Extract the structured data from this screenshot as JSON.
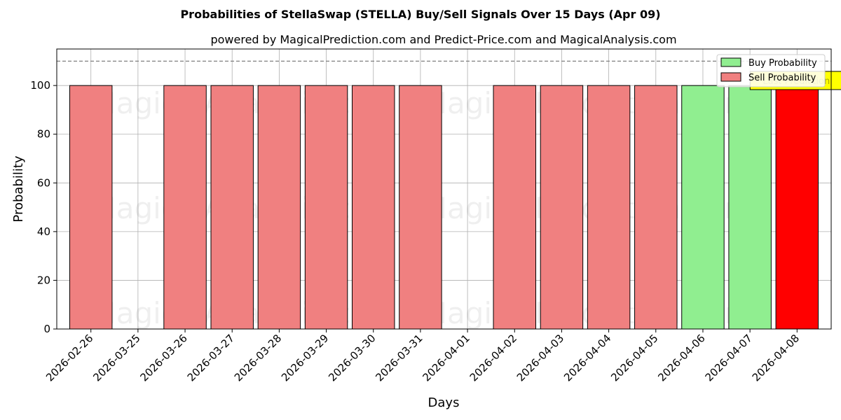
{
  "chart_data": {
    "type": "bar",
    "title": "Probabilities of StellaSwap (STELLA) Buy/Sell Signals Over 15 Days (Apr 09)",
    "subtitle": "powered by MagicalPrediction.com and Predict-Price.com and MagicalAnalysis.com",
    "xlabel": "Days",
    "ylabel": "Probability",
    "ylim": [
      0,
      115
    ],
    "yticks": [
      0,
      20,
      40,
      60,
      80,
      100
    ],
    "reference_line": 110,
    "grid": true,
    "legend_position": "top-right",
    "categories": [
      "2026-02-26",
      "2026-03-25",
      "2026-03-26",
      "2026-03-27",
      "2026-03-28",
      "2026-03-29",
      "2026-03-30",
      "2026-03-31",
      "2026-04-01",
      "2026-04-02",
      "2026-04-03",
      "2026-04-04",
      "2026-04-05",
      "2026-04-06",
      "2026-04-07",
      "2026-04-08"
    ],
    "series": [
      {
        "name": "Buy Probability",
        "color": "#90ee90",
        "values": [
          0,
          0,
          0,
          0,
          0,
          0,
          0,
          0,
          0,
          0,
          0,
          0,
          0,
          100,
          100,
          0
        ]
      },
      {
        "name": "Sell Probability",
        "color": "#f08080",
        "values": [
          100,
          0,
          100,
          100,
          100,
          100,
          100,
          100,
          0,
          100,
          100,
          100,
          100,
          0,
          0,
          100
        ]
      }
    ],
    "highlight": {
      "category": "2026-04-08",
      "color": "#ff0000",
      "label": "Last Prediction",
      "label_color": "#ffff00"
    },
    "watermarks": [
      "MagicalAnalysis.com",
      "MagicalPrediction.com"
    ]
  }
}
